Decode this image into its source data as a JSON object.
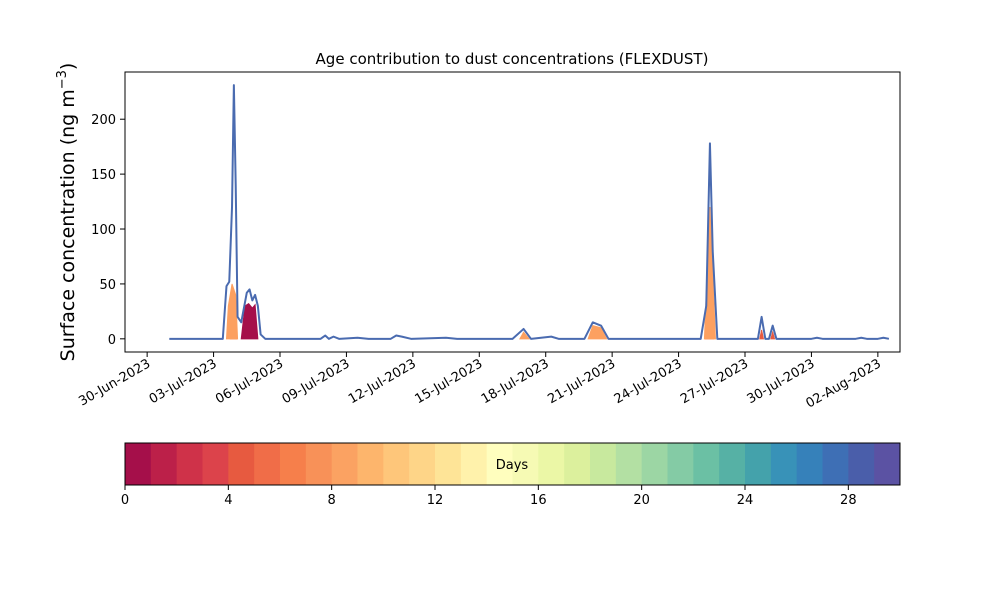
{
  "chart_data": {
    "type": "area",
    "title": "Age contribution to dust concentrations (FLEXDUST)",
    "ylabel": "Surface concentration (ng m",
    "ylabel_exponent": "−3",
    "ylabel_close": ")",
    "xlabel": "",
    "x_ticks": [
      "30-Jun-2023",
      "03-Jul-2023",
      "06-Jul-2023",
      "09-Jul-2023",
      "12-Jul-2023",
      "15-Jul-2023",
      "18-Jul-2023",
      "21-Jul-2023",
      "24-Jul-2023",
      "27-Jul-2023",
      "30-Jul-2023",
      "02-Aug-2023"
    ],
    "x_range": [
      "2023-06-29",
      "2023-08-03"
    ],
    "y_ticks": [
      0,
      50,
      100,
      150,
      200
    ],
    "ylim": [
      -12,
      243
    ],
    "grid": false,
    "legend": "none",
    "series_top": {
      "color": "#4a6bb0",
      "points": [
        [
          "2023-07-01T00:00",
          0
        ],
        [
          "2023-07-03T10:00",
          0
        ],
        [
          "2023-07-03T14:00",
          48
        ],
        [
          "2023-07-03T17:00",
          52
        ],
        [
          "2023-07-03T20:00",
          120
        ],
        [
          "2023-07-03T22:00",
          231
        ],
        [
          "2023-07-04T00:00",
          140
        ],
        [
          "2023-07-04T02:00",
          20
        ],
        [
          "2023-07-04T06:00",
          15
        ],
        [
          "2023-07-04T12:00",
          42
        ],
        [
          "2023-07-04T15:00",
          45
        ],
        [
          "2023-07-04T18:00",
          35
        ],
        [
          "2023-07-04T21:00",
          40
        ],
        [
          "2023-07-05T00:00",
          30
        ],
        [
          "2023-07-05T03:00",
          4
        ],
        [
          "2023-07-05T08:00",
          0
        ],
        [
          "2023-07-07T20:00",
          0
        ],
        [
          "2023-07-08T01:00",
          3
        ],
        [
          "2023-07-08T05:00",
          0
        ],
        [
          "2023-07-08T10:00",
          2
        ],
        [
          "2023-07-08T16:00",
          0
        ],
        [
          "2023-07-09T12:00",
          1
        ],
        [
          "2023-07-10T00:00",
          0
        ],
        [
          "2023-07-11T00:00",
          0
        ],
        [
          "2023-07-11T06:00",
          3
        ],
        [
          "2023-07-11T12:00",
          2
        ],
        [
          "2023-07-11T22:00",
          0
        ],
        [
          "2023-07-13T12:00",
          1
        ],
        [
          "2023-07-14T00:00",
          0
        ],
        [
          "2023-07-16T12:00",
          0
        ],
        [
          "2023-07-17T00:00",
          9
        ],
        [
          "2023-07-17T08:00",
          0
        ],
        [
          "2023-07-18T06:00",
          2
        ],
        [
          "2023-07-18T14:00",
          0
        ],
        [
          "2023-07-19T18:00",
          0
        ],
        [
          "2023-07-20T03:00",
          15
        ],
        [
          "2023-07-20T12:00",
          12
        ],
        [
          "2023-07-20T20:00",
          0
        ],
        [
          "2023-07-25T00:00",
          0
        ],
        [
          "2023-07-25T06:00",
          30
        ],
        [
          "2023-07-25T10:00",
          178
        ],
        [
          "2023-07-25T13:00",
          80
        ],
        [
          "2023-07-25T18:00",
          0
        ],
        [
          "2023-07-27T14:00",
          0
        ],
        [
          "2023-07-27T18:00",
          20
        ],
        [
          "2023-07-27T22:00",
          0
        ],
        [
          "2023-07-28T02:00",
          0
        ],
        [
          "2023-07-28T06:00",
          12
        ],
        [
          "2023-07-28T10:00",
          0
        ],
        [
          "2023-07-30T00:00",
          0
        ],
        [
          "2023-07-30T06:00",
          1
        ],
        [
          "2023-07-30T12:00",
          0
        ],
        [
          "2023-08-01T00:00",
          0
        ],
        [
          "2023-08-01T06:00",
          1
        ],
        [
          "2023-08-01T12:00",
          0
        ],
        [
          "2023-08-02T00:00",
          0
        ],
        [
          "2023-08-02T06:00",
          1
        ],
        [
          "2023-08-02T12:00",
          0
        ]
      ]
    },
    "age_layers": [
      {
        "days": "0-1",
        "color": "#a50f4a",
        "points": [
          [
            "2023-07-04T06:00",
            0
          ],
          [
            "2023-07-04T10:00",
            30
          ],
          [
            "2023-07-04T14:00",
            32
          ],
          [
            "2023-07-04T18:00",
            28
          ],
          [
            "2023-07-04T21:00",
            31
          ],
          [
            "2023-07-05T00:00",
            0
          ]
        ]
      },
      {
        "days": "4-5",
        "color": "#e75a40",
        "points": [
          [
            "2023-07-03T18:00",
            0
          ],
          [
            "2023-07-03T22:00",
            45
          ],
          [
            "2023-07-04T01:00",
            0
          ],
          [
            "2023-07-25T05:00",
            0
          ],
          [
            "2023-07-25T10:00",
            60
          ],
          [
            "2023-07-25T14:00",
            0
          ],
          [
            "2023-07-27T16:00",
            0
          ],
          [
            "2023-07-27T18:00",
            8
          ],
          [
            "2023-07-27T20:00",
            0
          ],
          [
            "2023-07-28T04:00",
            0
          ],
          [
            "2023-07-28T06:00",
            6
          ],
          [
            "2023-07-28T08:00",
            0
          ]
        ]
      },
      {
        "days": "8-9",
        "color": "#fca060",
        "points": [
          [
            "2023-07-03T14:00",
            0
          ],
          [
            "2023-07-03T16:00",
            30
          ],
          [
            "2023-07-03T20:00",
            50
          ],
          [
            "2023-07-04T00:00",
            40
          ],
          [
            "2023-07-04T02:00",
            0
          ],
          [
            "2023-07-25T04:00",
            0
          ],
          [
            "2023-07-25T10:00",
            120
          ],
          [
            "2023-07-25T16:00",
            0
          ],
          [
            "2023-07-19T22:00",
            0
          ],
          [
            "2023-07-20T03:00",
            12
          ],
          [
            "2023-07-20T12:00",
            10
          ],
          [
            "2023-07-20T18:00",
            0
          ],
          [
            "2023-07-16T20:00",
            0
          ],
          [
            "2023-07-17T00:00",
            6
          ],
          [
            "2023-07-17T06:00",
            0
          ]
        ]
      }
    ],
    "colorbar": {
      "label": "Days",
      "ticks": [
        0,
        4,
        8,
        12,
        16,
        20,
        24,
        28
      ],
      "range": [
        0,
        30
      ],
      "colors": [
        "#a50f4a",
        "#bc2049",
        "#cf3249",
        "#dc434b",
        "#e75a40",
        "#f06d48",
        "#f67f4b",
        "#f89158",
        "#fba262",
        "#fdb56c",
        "#fec67a",
        "#fed588",
        "#fee497",
        "#fff2ab",
        "#fffebe",
        "#f6fab4",
        "#ebf7a6",
        "#dcf09d",
        "#c8e99e",
        "#b3e0a3",
        "#9cd6a4",
        "#84cba5",
        "#6bc0a4",
        "#56b1a5",
        "#44a2ab",
        "#3892b8",
        "#3681ba",
        "#3e6fb5",
        "#4a5eaa",
        "#5b52a3"
      ]
    }
  }
}
